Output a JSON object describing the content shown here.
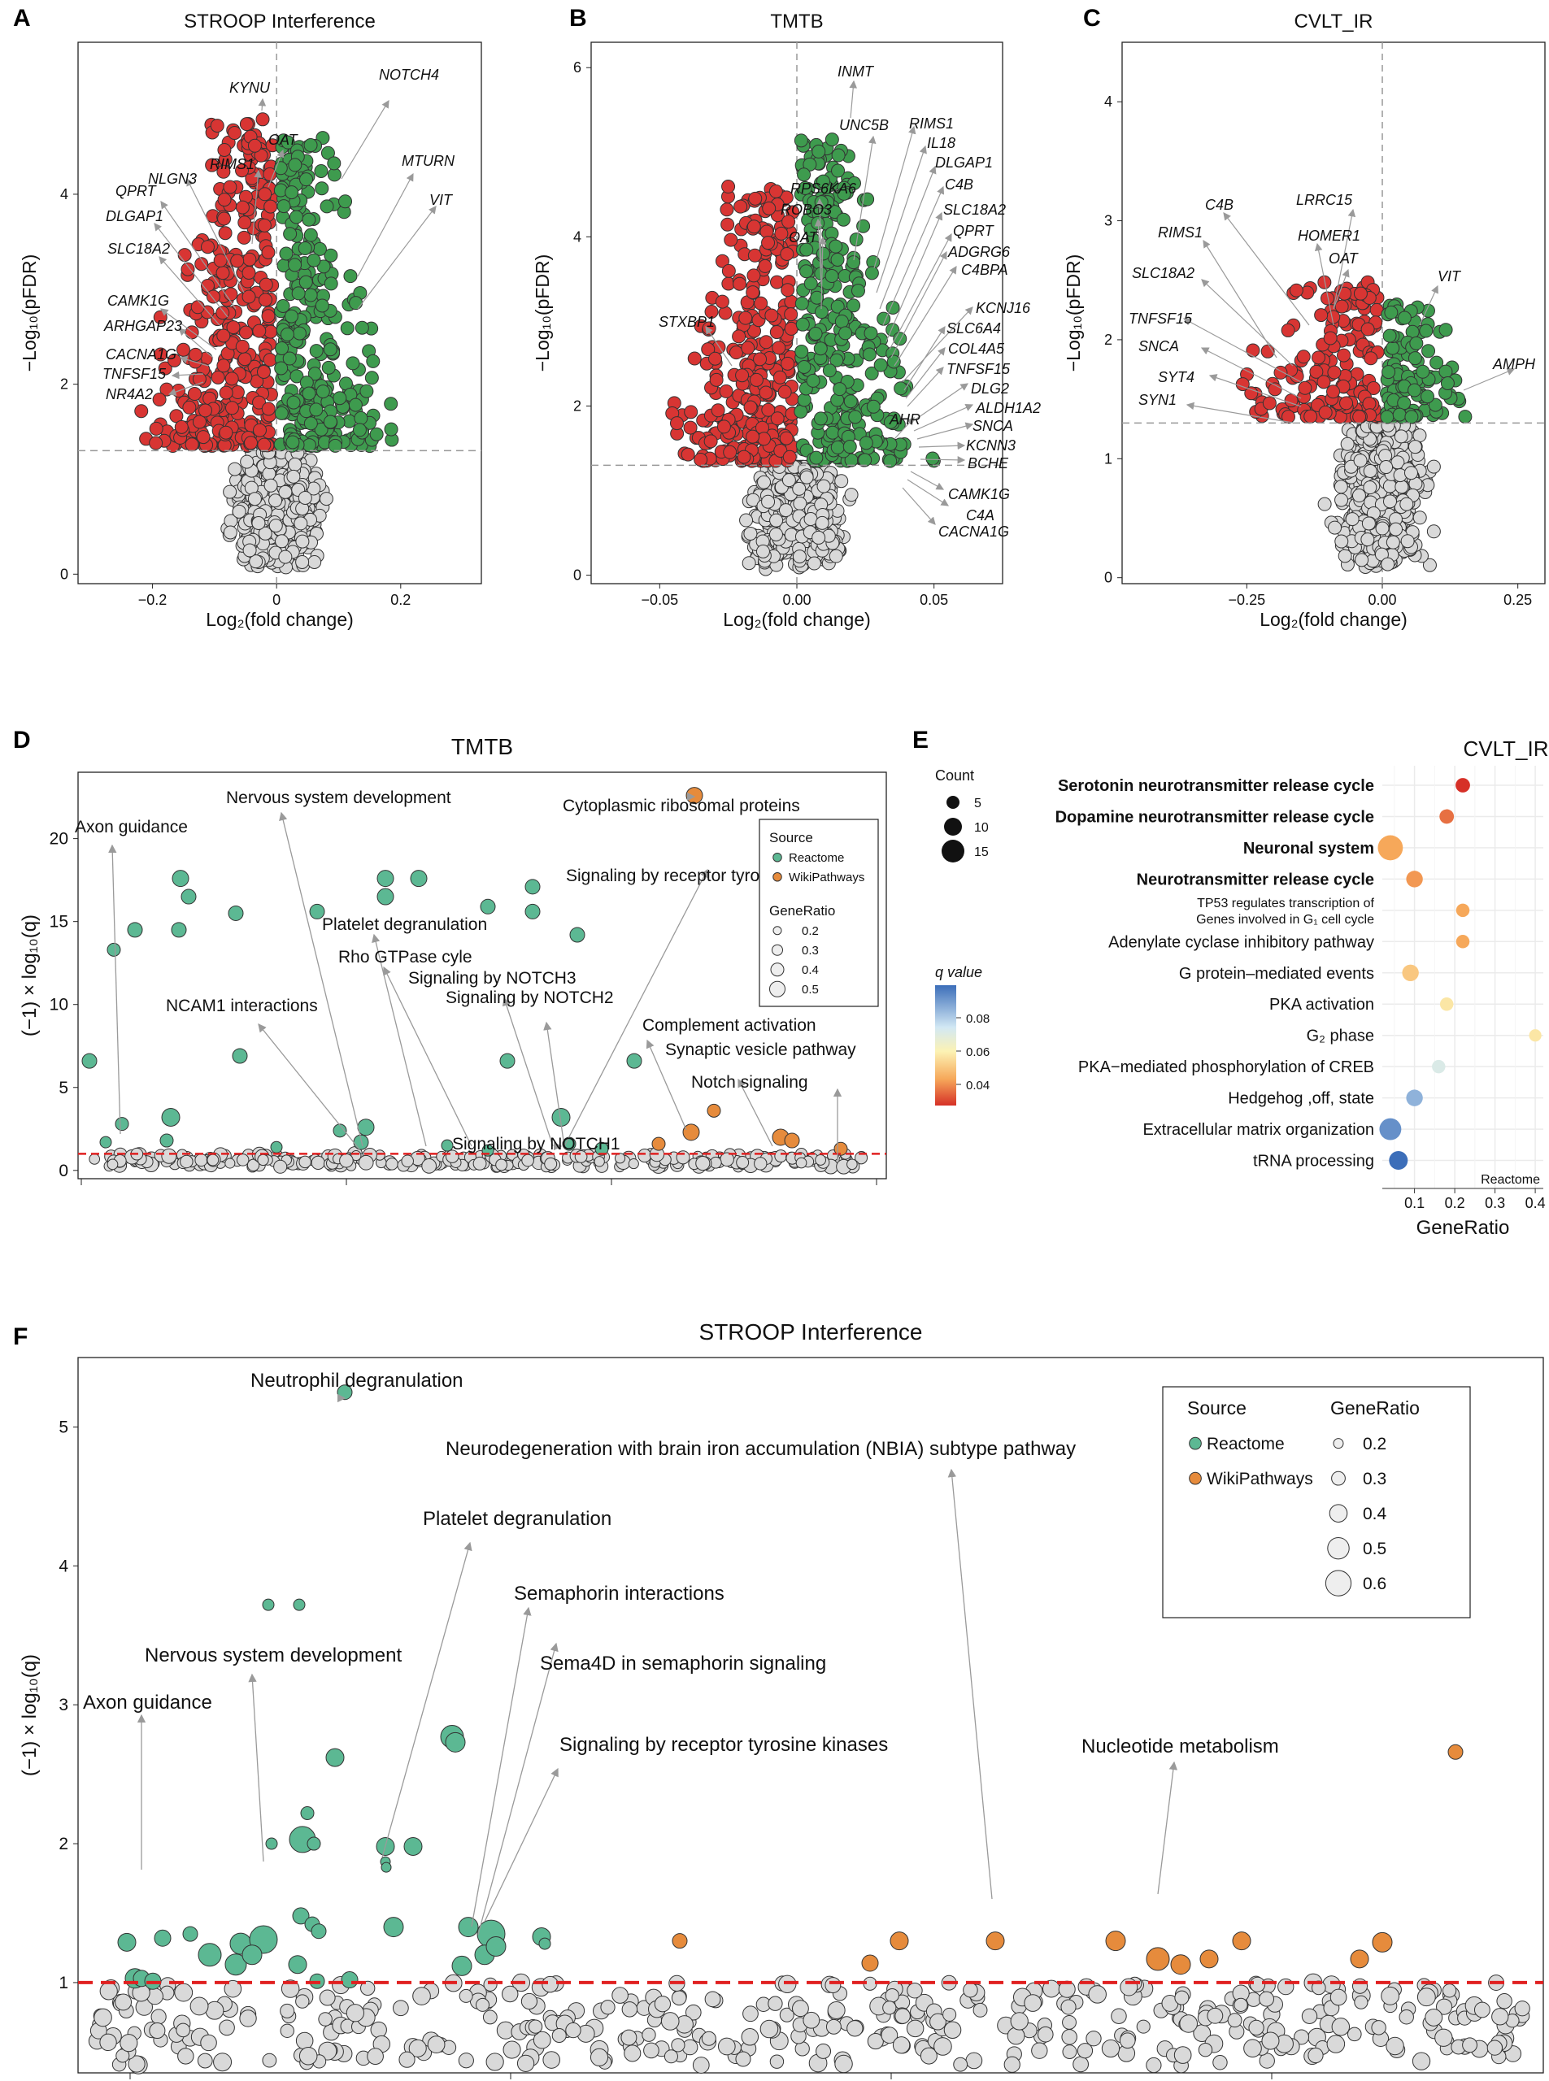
{
  "colors": {
    "up": "#3e9b4e",
    "down": "#d83533",
    "ns": "#d9d9d9",
    "reactome": "#5cb893",
    "wiki": "#e68b3c",
    "threshold": "#e02020",
    "arrow": "#9a9a9a"
  },
  "chart_data": [
    {
      "panel": "A",
      "type": "scatter",
      "title": "STROOP Interference",
      "xlabel": "Log₂(fold change)",
      "ylabel": "−Log₁₀(pFDR)",
      "xlim": [
        -0.32,
        0.33
      ],
      "ylim": [
        -0.1,
        5.6
      ],
      "xticks": [
        -0.2,
        0,
        0.2
      ],
      "xtick_labels": [
        "−0.2",
        "0",
        "0.2"
      ],
      "yticks": [
        0,
        2,
        4
      ],
      "threshold": 1.3,
      "labels": [
        "KYNU",
        "OAT",
        "RIMS1",
        "NLGN3",
        "QPRT",
        "DLGAP1",
        "SLC18A2",
        "CAMK1G",
        "ARHGAP23",
        "CACNA1G",
        "TNFSF15",
        "NR4A2",
        "NOTCH4",
        "MTURN",
        "VIT"
      ]
    },
    {
      "panel": "B",
      "type": "scatter",
      "title": "TMTB",
      "xlabel": "Log₂(fold change)",
      "ylabel": "−Log₁₀(pFDR)",
      "xlim": [
        -0.075,
        0.075
      ],
      "ylim": [
        -0.1,
        6.3
      ],
      "xticks": [
        -0.05,
        0,
        0.05
      ],
      "xtick_labels": [
        "−0.05",
        "0.00",
        "0.05"
      ],
      "yticks": [
        0,
        2,
        4,
        6
      ],
      "threshold": 1.3,
      "labels": [
        "INMT",
        "UNC5B",
        "RIMS1",
        "IL18",
        "DLGAP1",
        "C4B",
        "RPS6KA6",
        "ROBO3",
        "SLC18A2",
        "QPRT",
        "OAT",
        "ADGRG6",
        "C4BPA",
        "STXBP1",
        "KCNJ16",
        "SLC6A4",
        "COL4A5",
        "TNFSF15",
        "DLG2",
        "ALDH1A2",
        "AHR",
        "SNCA",
        "KCNN3",
        "BCHE",
        "CAMK1G",
        "C4A",
        "CACNA1G"
      ]
    },
    {
      "panel": "C",
      "type": "scatter",
      "title": "CVLT_IR",
      "xlabel": "Log₂(fold change)",
      "ylabel": "−Log₁₀(pFDR)",
      "xlim": [
        -0.48,
        0.3
      ],
      "ylim": [
        -0.05,
        4.5
      ],
      "xticks": [
        -0.25,
        0,
        0.25
      ],
      "xtick_labels": [
        "−0.25",
        "0.00",
        "0.25"
      ],
      "yticks": [
        0,
        1,
        2,
        3,
        4
      ],
      "threshold": 1.3,
      "labels": [
        "LRRC15",
        "C4B",
        "HOMER1",
        "RIMS1",
        "OAT",
        "SLC18A2",
        "VIT",
        "TNFSF15",
        "SNCA",
        "SYT4",
        "SYN1",
        "AMPH"
      ]
    },
    {
      "panel": "D",
      "type": "scatter",
      "title": "TMTB",
      "ylabel": "(−1) × log₁₀(q)",
      "ylim": [
        -0.5,
        24
      ],
      "yticks": [
        0,
        5,
        10,
        15,
        20
      ],
      "threshold": 1,
      "labels": [
        "Axon guidance",
        "Nervous system development",
        "Cytoplasmic ribosomal proteins",
        "Signaling by receptor tyrosine kinases",
        "Platelet degranulation",
        "Rho GTPase cyle",
        "Signaling by NOTCH3",
        "Signaling by NOTCH2",
        "NCAM1 interactions",
        "Complement activation",
        "Synaptic vesicle pathway",
        "Notch signaling",
        "Signaling by NOTCH1"
      ],
      "legend": {
        "source_title": "Source",
        "sources": [
          "Reactome",
          "WikiPathways"
        ],
        "ratio_title": "GeneRatio",
        "ratios": [
          "0.2",
          "0.3",
          "0.4",
          "0.5"
        ]
      }
    },
    {
      "panel": "E",
      "type": "scatter",
      "title": "CVLT_IR",
      "xlabel": "GeneRatio",
      "xticks": [
        "0.1",
        "0.2",
        "0.3",
        "0.4"
      ],
      "source_note": "Reactome",
      "count_title": "Count",
      "counts": [
        "5",
        "10",
        "15"
      ],
      "q_title": "q value",
      "q_ticks": [
        "0.08",
        "0.06",
        "0.04"
      ],
      "pathways": [
        {
          "name": "Serotonin neurotransmitter release cycle",
          "bold": true,
          "ratio": 0.22,
          "count": 6,
          "q": 0.035
        },
        {
          "name": "Dopamine neurotransmitter release cycle",
          "bold": true,
          "ratio": 0.18,
          "count": 6,
          "q": 0.043
        },
        {
          "name": "Neuronal system",
          "bold": true,
          "ratio": 0.04,
          "count": 16,
          "q": 0.05
        },
        {
          "name": "Neurotransmitter release cycle",
          "bold": true,
          "ratio": 0.1,
          "count": 8,
          "q": 0.048
        },
        {
          "name": "TP53 regulates transcription of",
          "name2": "Genes involved in G₁ cell cycle",
          "bold": false,
          "ratio": 0.22,
          "count": 5,
          "q": 0.05
        },
        {
          "name": "Adenylate cyclase inhibitory pathway",
          "bold": false,
          "ratio": 0.22,
          "count": 5,
          "q": 0.05
        },
        {
          "name": "G protein–mediated events",
          "bold": false,
          "ratio": 0.09,
          "count": 8,
          "q": 0.055
        },
        {
          "name": "PKA activation",
          "bold": false,
          "ratio": 0.18,
          "count": 5,
          "q": 0.06
        },
        {
          "name": "G₂ phase",
          "bold": false,
          "ratio": 0.4,
          "count": 4,
          "q": 0.06
        },
        {
          "name": "PKA−mediated phosphorylation of CREB",
          "bold": false,
          "ratio": 0.16,
          "count": 5,
          "q": 0.07
        },
        {
          "name": "Hedgehog ,off, state",
          "bold": false,
          "ratio": 0.1,
          "count": 8,
          "q": 0.08
        },
        {
          "name": "Extracellular matrix organization",
          "bold": false,
          "ratio": 0.04,
          "count": 13,
          "q": 0.085
        },
        {
          "name": "tRNA processing",
          "bold": false,
          "ratio": 0.06,
          "count": 10,
          "q": 0.09
        }
      ]
    },
    {
      "panel": "F",
      "type": "scatter",
      "title": "STROOP Interference",
      "ylabel": "(−1) × log₁₀(q)",
      "ylim": [
        0.35,
        5.5
      ],
      "yticks": [
        1,
        2,
        3,
        4,
        5
      ],
      "threshold": 1,
      "labels": [
        "Neutrophil degranulation",
        "Neurodegeneration with brain iron accumulation (NBIA) subtype pathway",
        "Platelet degranulation",
        "Semaphorin interactions",
        "Sema4D in semaphorin signaling",
        "Nervous system development",
        "Axon guidance",
        "Signaling by receptor tyrosine kinases",
        "Nucleotide metabolism"
      ],
      "legend": {
        "source_title": "Source",
        "sources": [
          "Reactome",
          "WikiPathways"
        ],
        "ratio_title": "GeneRatio",
        "ratios": [
          "0.2",
          "0.3",
          "0.4",
          "0.5",
          "0.6"
        ]
      }
    }
  ]
}
